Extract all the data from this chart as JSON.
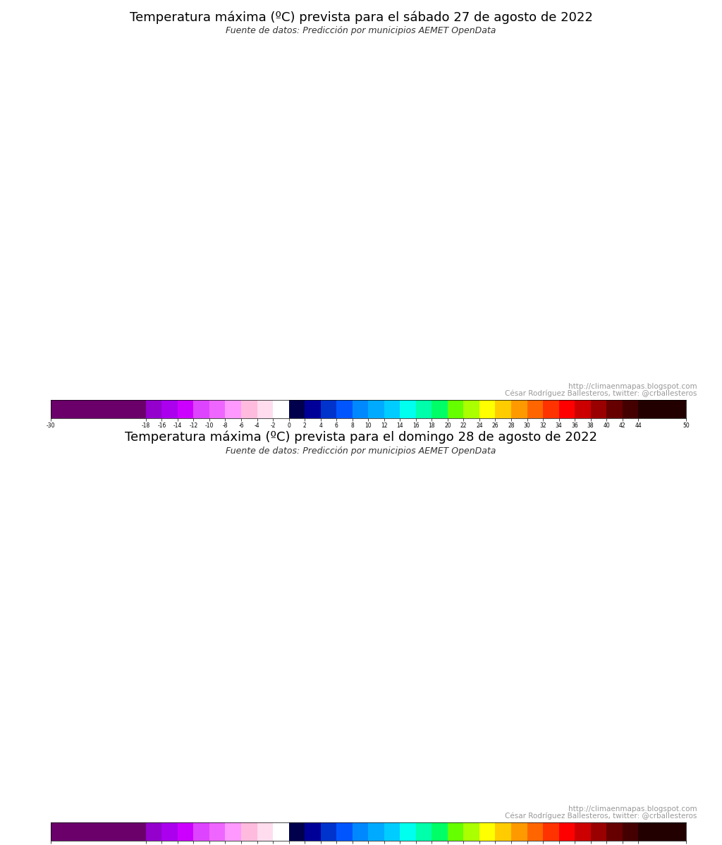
{
  "title1": "Temperatura máxima (ºC) prevista para el sábado 27 de agosto de 2022",
  "subtitle1": "Fuente de datos: Predicción por municipios AEMET OpenData",
  "title2": "Temperatura máxima (ºC) prevista para el domingo 28 de agosto de 2022",
  "subtitle2": "Fuente de datos: Predicción por municipios AEMET OpenData",
  "credit_line1": "http://climaenmapas.blogspot.com",
  "credit_line2": "César Rodríguez Ballesteros, twitter: @crballesteros",
  "colorbar_ticks": [
    -30,
    -18,
    -16,
    -14,
    -12,
    -10,
    -8,
    -6,
    -4,
    -2,
    0,
    2,
    4,
    6,
    8,
    10,
    12,
    14,
    16,
    18,
    20,
    22,
    24,
    26,
    28,
    30,
    32,
    34,
    36,
    38,
    40,
    42,
    44,
    50
  ],
  "colorbar_segments": [
    "#6b006b",
    "#9400cc",
    "#aa00ee",
    "#cc00ff",
    "#dd44ff",
    "#ee66ff",
    "#ff99ff",
    "#ffbbdd",
    "#ffddee",
    "#ffffff",
    "#00004d",
    "#000099",
    "#0033cc",
    "#0055ff",
    "#0088ff",
    "#00aaff",
    "#00ccff",
    "#00ffee",
    "#00ffaa",
    "#00ff66",
    "#66ff00",
    "#aaff00",
    "#ffff00",
    "#ffcc00",
    "#ff9900",
    "#ff6600",
    "#ff3300",
    "#ff0000",
    "#cc0000",
    "#990000",
    "#660000",
    "#440000",
    "#220000"
  ],
  "background_color": "#ffffff",
  "title_fontsize": 13,
  "subtitle_fontsize": 9,
  "credit_fontsize": 7.5,
  "fig_width": 10.24,
  "fig_height": 11.98,
  "dpi": 100
}
